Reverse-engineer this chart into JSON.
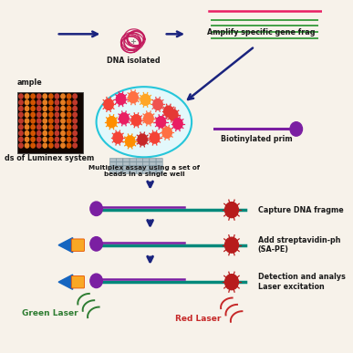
{
  "background_color": "#f7f2ea",
  "labels": {
    "dna_isolated": "DNA isolated",
    "amplify": "Amplify specific gene frag",
    "multiplex": "Multiplex assay using a set of\nbeads in a single well",
    "beads_luminex": "ds of Luminex system",
    "sample": "ample",
    "biotinylated": "Biotinylated prim",
    "capture": "Capture DNA fragme",
    "add_strept": "Add streptavidin-ph\n(SA-PE)",
    "detection": "Detection and analys\nLaser excitation",
    "green_laser": "Green Laser",
    "red_laser": "Red Laser"
  },
  "colors": {
    "arrow_dark": "#1a237e",
    "dna_magenta": "#c2185b",
    "green_line": "#43a047",
    "pink_line": "#e91e63",
    "purple_bead": "#7b1fa2",
    "purple_line": "#7b1fa2",
    "teal_line": "#00897b",
    "yellow_rect": "#f9a825",
    "blue_cone": "#1565c0",
    "green_wave": "#2e7d32",
    "red_wave": "#c62828",
    "dark_red_bead": "#b71c1c",
    "text_color": "#1a1a1a",
    "ellipse_fill": "#e3f8fb",
    "ellipse_edge": "#26c6da",
    "plate_bg": "#100500"
  },
  "bead_colors_ellipse": [
    [
      "#f44336",
      3.05,
      7.05
    ],
    [
      "#e91e63",
      3.45,
      7.2
    ],
    [
      "#ff7043",
      3.85,
      7.25
    ],
    [
      "#ffa726",
      4.25,
      7.18
    ],
    [
      "#ef5350",
      4.65,
      7.05
    ],
    [
      "#e53935",
      5.0,
      6.85
    ],
    [
      "#ff8f00",
      3.15,
      6.55
    ],
    [
      "#e91e63",
      3.55,
      6.65
    ],
    [
      "#f44336",
      3.95,
      6.6
    ],
    [
      "#ff7043",
      4.35,
      6.65
    ],
    [
      "#e91e63",
      4.75,
      6.55
    ],
    [
      "#e53935",
      5.15,
      6.75
    ],
    [
      "#f44336",
      3.35,
      6.1
    ],
    [
      "#ff8f00",
      3.75,
      6.0
    ],
    [
      "#c62828",
      4.15,
      6.05
    ],
    [
      "#f44336",
      4.55,
      6.1
    ],
    [
      "#ff7043",
      4.95,
      6.25
    ],
    [
      "#e91e63",
      5.3,
      6.5
    ]
  ]
}
